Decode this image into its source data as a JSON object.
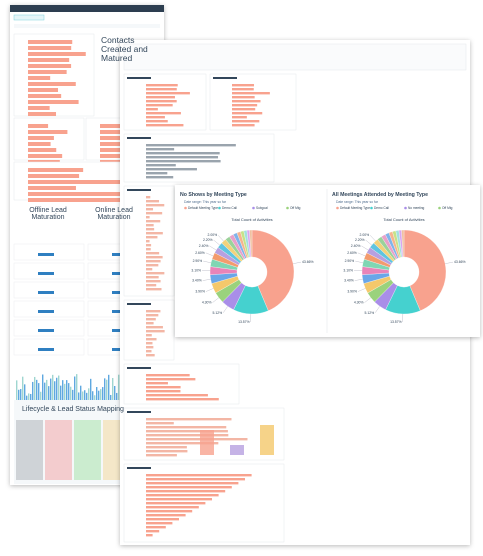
{
  "dashboard": {
    "contacts_title": "Contacts Created and Matured",
    "offline_title": "Offline Lead Maturation",
    "online_title": "Online Lead Maturation",
    "lifecycle_title": "Lifecycle & Lead Status Mapping"
  },
  "chart_data": [
    {
      "type": "pie",
      "title": "No Shows by Meeting Type",
      "subtitle": "Date range: This year so far",
      "legend": [
        "Default Meeting Type",
        "Demo Call",
        "Subgoal",
        "Off Mtg"
      ],
      "total_label": "Total Count of Activities",
      "values": [
        43.66,
        13.57,
        5.12,
        4.3,
        3.9,
        3.4,
        3.1,
        2.9,
        2.6,
        2.4,
        2.2,
        2.0,
        1.8,
        1.7,
        1.5,
        1.4,
        1.3,
        1.2,
        1.0,
        0.94
      ],
      "value_labels": [
        "43.66%",
        "13.57%",
        "5.12%",
        "4.30%",
        "3.90%",
        "3.40%",
        "3.10%",
        "2.90%",
        "2.60%",
        "2.40%",
        "2.20%",
        "2.00%",
        null,
        null,
        null,
        null,
        null,
        null,
        null,
        null
      ],
      "colors": [
        "#f8a28e",
        "#45d1cf",
        "#a98ee8",
        "#9ad27c",
        "#f4c86b",
        "#6aa6e8",
        "#e884b8",
        "#7fd6b3",
        "#f39b6d",
        "#b7a0e0",
        "#5fc4e0",
        "#f2d27b",
        "#9bd29a",
        "#e8a1c9",
        "#7fb3ea",
        "#f6b48e",
        "#c6e28a",
        "#a3e0de",
        "#d9a6f0",
        "#f0c0a0"
      ]
    },
    {
      "type": "pie",
      "title": "All Meetings Attended by Meeting Type",
      "subtitle": "Date range: This year so far",
      "legend": [
        "Default Meeting Type",
        "Demo Call",
        "No meeting",
        "Off Mtg"
      ],
      "total_label": "Total Count of Activities",
      "values": [
        43.66,
        13.57,
        5.12,
        4.3,
        3.9,
        3.4,
        3.1,
        2.9,
        2.6,
        2.4,
        2.2,
        2.0,
        1.8,
        1.7,
        1.5,
        1.4,
        1.3,
        1.2,
        1.0,
        0.94
      ],
      "value_labels": [
        "43.66%",
        "13.57%",
        "5.12%",
        "4.30%",
        "3.90%",
        "3.40%",
        "3.10%",
        "2.90%",
        "2.60%",
        "2.40%",
        "2.20%",
        "2.00%",
        null,
        null,
        null,
        null,
        null,
        null,
        null,
        null
      ],
      "colors": [
        "#f8a28e",
        "#45d1cf",
        "#a98ee8",
        "#9ad27c",
        "#f4c86b",
        "#6aa6e8",
        "#e884b8",
        "#7fd6b3",
        "#f39b6d",
        "#b7a0e0",
        "#5fc4e0",
        "#f2d27b",
        "#9bd29a",
        "#e8a1c9",
        "#7fb3ea",
        "#f6b48e",
        "#c6e28a",
        "#a3e0de",
        "#d9a6f0",
        "#f0c0a0"
      ]
    }
  ]
}
